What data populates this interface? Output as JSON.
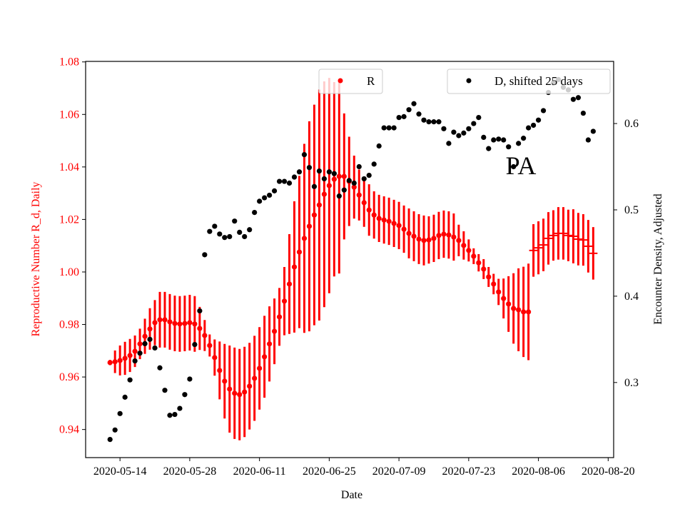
{
  "chart_data": {
    "type": "scatter",
    "title": "",
    "annotation": "PA",
    "xlabel": "Date",
    "ylabel_left": "Reproductive Number R_d, Daily",
    "ylabel_right": "Encounter Density, Adjusted",
    "x_start_date": "2020-05-12",
    "x_step_days": 1,
    "xlim_days_from_start": [
      -4.9,
      101.1
    ],
    "x_ticks_days_from_start": [
      2,
      16,
      30,
      44,
      58,
      72,
      86,
      100
    ],
    "x_tick_labels": [
      "2020-05-14",
      "2020-05-28",
      "2020-06-11",
      "2020-06-25",
      "2020-07-09",
      "2020-07-23",
      "2020-08-06",
      "2020-08-20"
    ],
    "ylim_left": [
      0.9293,
      1.0802
    ],
    "y_ticks_left": [
      0.94,
      0.96,
      0.98,
      1.0,
      1.02,
      1.04,
      1.06,
      1.08
    ],
    "y_tick_labels_left": [
      "0.94",
      "0.96",
      "0.98",
      "1.00",
      "1.02",
      "1.04",
      "1.06",
      "1.08"
    ],
    "ylim_right": [
      0.213,
      0.672
    ],
    "y_ticks_right": [
      0.3,
      0.4,
      0.5,
      0.6
    ],
    "y_tick_labels_right": [
      "0.3",
      "0.4",
      "0.5",
      "0.6"
    ],
    "grid": false,
    "legend": [
      {
        "label": "R",
        "placement": "top-center"
      },
      {
        "label": "D, shifted 25 days",
        "placement": "top-right"
      }
    ],
    "colors": {
      "R": "#ff0000",
      "D": "#000000",
      "left_axis": "#ff0000"
    },
    "series": [
      {
        "name": "R",
        "axis": "left",
        "marker_change_index": 85,
        "values": [
          0.9655,
          0.9658,
          0.9663,
          0.9671,
          0.9682,
          0.9698,
          0.9726,
          0.9755,
          0.9783,
          0.9807,
          0.9818,
          0.9818,
          0.981,
          0.9804,
          0.9802,
          0.9804,
          0.9807,
          0.9802,
          0.9785,
          0.9758,
          0.972,
          0.9674,
          0.9625,
          0.9584,
          0.9554,
          0.9538,
          0.9533,
          0.9543,
          0.9565,
          0.9595,
          0.9633,
          0.9677,
          0.9726,
          0.9774,
          0.9829,
          0.9889,
          0.9954,
          1.0019,
          1.0076,
          1.0128,
          1.0174,
          1.0217,
          1.0255,
          1.0296,
          1.0329,
          1.0353,
          1.0364,
          1.0364,
          1.0345,
          1.0323,
          1.0293,
          1.0264,
          1.0236,
          1.0217,
          1.0204,
          1.0198,
          1.0193,
          1.0185,
          1.0177,
          1.0163,
          1.0147,
          1.0136,
          1.0125,
          1.012,
          1.0122,
          1.0128,
          1.0139,
          1.0144,
          1.0141,
          1.0133,
          1.012,
          1.0101,
          1.0082,
          1.006,
          1.0035,
          1.0011,
          0.9981,
          0.9954,
          0.9924,
          0.9899,
          0.9878,
          0.9861,
          0.9856,
          0.9848,
          0.9848,
          1.0082,
          1.0092,
          1.0103,
          1.0128,
          1.0139,
          1.0147,
          1.0147,
          1.0139,
          1.0136,
          1.0125,
          1.0122,
          1.0098,
          1.0071
        ],
        "errors": [
          0.001,
          0.0043,
          0.0057,
          0.0063,
          0.0063,
          0.006,
          0.0058,
          0.0067,
          0.0079,
          0.0086,
          0.0106,
          0.0106,
          0.0106,
          0.0106,
          0.0106,
          0.0106,
          0.0106,
          0.0106,
          0.0082,
          0.0059,
          0.0042,
          0.0069,
          0.011,
          0.0142,
          0.0166,
          0.0174,
          0.0174,
          0.0172,
          0.0165,
          0.0162,
          0.0157,
          0.0156,
          0.0143,
          0.0125,
          0.011,
          0.013,
          0.019,
          0.025,
          0.029,
          0.036,
          0.04,
          0.042,
          0.044,
          0.043,
          0.041,
          0.037,
          0.037,
          0.024,
          0.017,
          0.012,
          0.0097,
          0.0092,
          0.0098,
          0.009,
          0.009,
          0.009,
          0.009,
          0.009,
          0.009,
          0.009,
          0.0095,
          0.0095,
          0.0095,
          0.0095,
          0.009,
          0.009,
          0.009,
          0.009,
          0.009,
          0.009,
          0.006,
          0.0054,
          0.0042,
          0.003,
          0.0033,
          0.0038,
          0.0038,
          0.0039,
          0.005,
          0.0076,
          0.0106,
          0.0134,
          0.0158,
          0.0172,
          0.0184,
          0.01,
          0.0101,
          0.01,
          0.01,
          0.0096,
          0.01,
          0.01,
          0.0098,
          0.0103,
          0.01,
          0.0098,
          0.01,
          0.01
        ]
      },
      {
        "name": "D, shifted 25 days",
        "axis": "right",
        "values": [
          0.234,
          0.245,
          0.264,
          0.283,
          0.303,
          0.325,
          0.334,
          0.345,
          0.35,
          0.34,
          0.317,
          0.291,
          0.262,
          0.263,
          0.27,
          0.286,
          0.304,
          0.344,
          0.383,
          0.448,
          0.475,
          0.481,
          0.472,
          0.468,
          0.469,
          0.487,
          0.474,
          0.469,
          0.477,
          0.497,
          0.51,
          0.514,
          0.517,
          0.522,
          0.533,
          0.533,
          0.531,
          0.538,
          0.544,
          0.564,
          0.549,
          0.527,
          0.545,
          0.536,
          0.544,
          0.542,
          0.516,
          0.523,
          0.534,
          0.531,
          0.55,
          0.536,
          0.54,
          0.553,
          0.574,
          0.595,
          0.595,
          0.595,
          0.607,
          0.608,
          0.616,
          0.623,
          0.611,
          0.604,
          0.602,
          0.602,
          0.602,
          0.594,
          0.577,
          0.59,
          0.586,
          0.589,
          0.594,
          0.6,
          0.607,
          0.584,
          0.571,
          0.581,
          0.582,
          0.581,
          0.573,
          0.55,
          0.577,
          0.583,
          0.595,
          0.598,
          0.604,
          0.615,
          0.636,
          0.647,
          0.651,
          0.642,
          0.639,
          0.628,
          0.63,
          0.612,
          0.581,
          0.591
        ]
      }
    ]
  }
}
